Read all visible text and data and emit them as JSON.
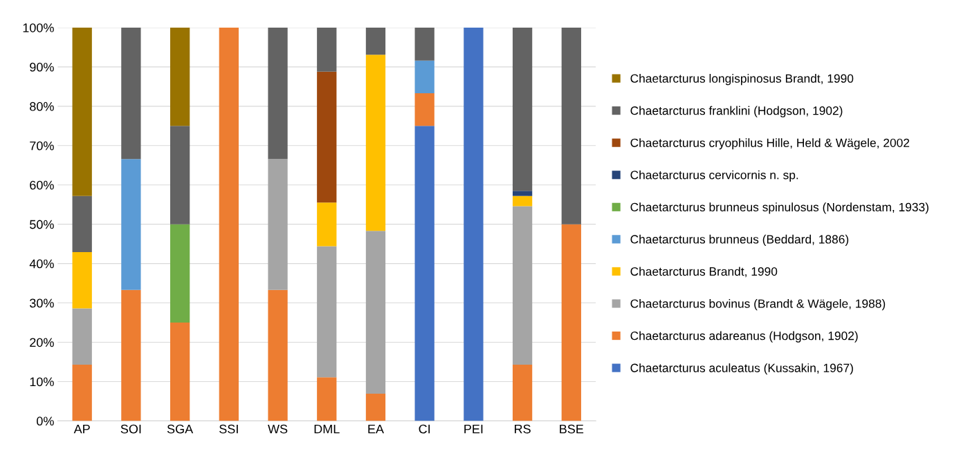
{
  "chart_data": {
    "type": "bar",
    "stacked": true,
    "categories": [
      "AP",
      "SOI",
      "SGA",
      "SSI",
      "WS",
      "DML",
      "EA",
      "CI",
      "PEI",
      "RS",
      "BSE"
    ],
    "ylim": [
      0,
      100
    ],
    "yticks": [
      {
        "value": 0,
        "label": "0%"
      },
      {
        "value": 10,
        "label": "10%"
      },
      {
        "value": 20,
        "label": "20%"
      },
      {
        "value": 30,
        "label": "30%"
      },
      {
        "value": 40,
        "label": "40%"
      },
      {
        "value": 50,
        "label": "50%"
      },
      {
        "value": 60,
        "label": "60%"
      },
      {
        "value": 70,
        "label": "70%"
      },
      {
        "value": 80,
        "label": "80%"
      },
      {
        "value": 90,
        "label": "90%"
      },
      {
        "value": 100,
        "label": "100%"
      }
    ],
    "grid": "y",
    "legend": "right",
    "series": [
      {
        "name": "Chaetarcturus aculeatus (Kussakin, 1967)",
        "color": "#4472c4",
        "values": [
          null,
          null,
          null,
          null,
          null,
          null,
          null,
          75,
          100,
          null,
          null
        ]
      },
      {
        "name": "Chaetarcturus adareanus (Hodgson, 1902)",
        "color": "#ed7d31",
        "values": [
          14.3,
          33.3,
          25,
          100,
          33.3,
          11.1,
          6.9,
          8.3,
          null,
          14.3,
          50
        ]
      },
      {
        "name": "Chaetarcturus bovinus (Brandt & Wägele, 1988)",
        "color": "#a5a5a5",
        "values": [
          14.3,
          null,
          null,
          null,
          33.3,
          33.3,
          41.4,
          null,
          null,
          40.3,
          null
        ]
      },
      {
        "name": "Chaetarcturus Brandt, 1990",
        "color": "#ffc000",
        "values": [
          14.3,
          null,
          null,
          null,
          null,
          11.1,
          44.8,
          null,
          null,
          2.6,
          null
        ]
      },
      {
        "name": "Chaetarcturus brunneus (Beddard, 1886)",
        "color": "#5b9bd5",
        "values": [
          null,
          33.3,
          null,
          null,
          null,
          null,
          null,
          8.3,
          null,
          null,
          null
        ]
      },
      {
        "name": "Chaetarcturus brunneus spinulosus (Nordenstam, 1933)",
        "color": "#70ad47",
        "values": [
          null,
          null,
          25,
          null,
          null,
          null,
          null,
          null,
          null,
          null,
          null
        ]
      },
      {
        "name": "Chaetarcturus cervicornis n. sp.",
        "color": "#264478",
        "values": [
          null,
          null,
          null,
          null,
          null,
          null,
          null,
          null,
          null,
          1.3,
          null
        ]
      },
      {
        "name": "Chaetarcturus cryophilus Hille, Held & Wägele, 2002",
        "color": "#9e480e",
        "values": [
          null,
          null,
          null,
          null,
          null,
          33.3,
          null,
          null,
          null,
          null,
          null
        ]
      },
      {
        "name": "Chaetarcturus franklini (Hodgson, 1902)",
        "color": "#636363",
        "values": [
          14.3,
          33.4,
          25,
          null,
          33.4,
          11.2,
          6.9,
          8.4,
          null,
          41.5,
          50
        ]
      },
      {
        "name": "Chaetarcturus longispinosus Brandt, 1990",
        "color": "#997300",
        "values": [
          42.8,
          null,
          25,
          null,
          null,
          null,
          null,
          null,
          null,
          null,
          null
        ]
      }
    ]
  }
}
